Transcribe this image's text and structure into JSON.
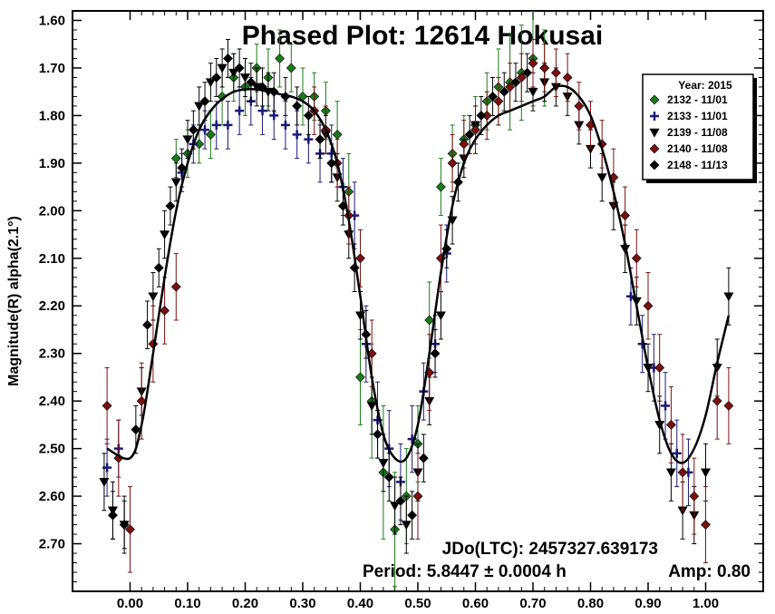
{
  "chart_data": {
    "type": "scatter",
    "title": "Phased Plot: 12614 Hokusai",
    "xlabel": "",
    "ylabel": "Magnitude(R) alpha(2.1°)",
    "xlim": [
      -0.1,
      1.1
    ],
    "ylim": [
      2.8,
      1.58
    ],
    "y_inverted": true,
    "x_ticks": [
      "0.00",
      "0.10",
      "0.20",
      "0.30",
      "0.40",
      "0.50",
      "0.60",
      "0.70",
      "0.80",
      "0.90",
      "1.00"
    ],
    "x_tick_values": [
      0.0,
      0.1,
      0.2,
      0.3,
      0.4,
      0.5,
      0.6,
      0.7,
      0.8,
      0.9,
      1.0
    ],
    "y_ticks": [
      "1.60",
      "1.70",
      "1.80",
      "1.90",
      "2.00",
      "2.10",
      "2.20",
      "2.30",
      "2.40",
      "2.50",
      "2.60",
      "2.70"
    ],
    "y_tick_values": [
      1.6,
      1.7,
      1.8,
      1.9,
      2.0,
      2.1,
      2.2,
      2.3,
      2.4,
      2.5,
      2.6,
      2.7
    ],
    "grid": false,
    "legend": {
      "title": "Year: 2015",
      "placement": "top-right",
      "entries": [
        "2132 - 11/01",
        "2133 - 11/01",
        "2139 - 11/08",
        "2140 - 11/08",
        "2148 - 11/13"
      ]
    },
    "annotations": [
      "JDo(LTC): 2457327.639173",
      "Period: 5.8447 ± 0.0004 h",
      "Amp: 0.80"
    ],
    "series": [
      {
        "name": "2132 - 11/01",
        "marker": "diamond",
        "color": "#1a7a1a",
        "x": [
          0.08,
          0.1,
          0.12,
          0.14,
          0.16,
          0.18,
          0.2,
          0.22,
          0.24,
          0.26,
          0.28,
          0.3,
          0.32,
          0.34,
          0.36,
          0.38,
          0.4,
          0.42,
          0.44,
          0.46,
          0.48,
          0.5,
          0.52,
          0.54,
          0.56,
          0.58,
          0.6,
          0.62,
          0.64,
          0.66,
          0.68,
          0.7,
          0.72
        ],
        "y": [
          1.89,
          1.88,
          1.86,
          1.84,
          1.76,
          1.72,
          1.74,
          1.7,
          1.72,
          1.68,
          1.7,
          1.76,
          1.76,
          1.79,
          1.84,
          1.96,
          2.35,
          2.4,
          2.55,
          2.67,
          2.6,
          2.49,
          2.23,
          1.95,
          1.88,
          1.85,
          1.82,
          1.77,
          1.74,
          1.73,
          1.71,
          1.68,
          1.7
        ],
        "err": [
          0.04,
          0.05,
          0.04,
          0.05,
          0.06,
          0.05,
          0.06,
          0.05,
          0.06,
          0.06,
          0.05,
          0.06,
          0.05,
          0.06,
          0.07,
          0.08,
          0.1,
          0.12,
          0.14,
          0.12,
          0.1,
          0.08,
          0.08,
          0.06,
          0.06,
          0.05,
          0.06,
          0.06,
          0.08,
          0.1,
          0.1,
          0.1,
          0.08
        ]
      },
      {
        "name": "2133 - 11/01",
        "marker": "plus",
        "color": "#1a1a7a",
        "x": [
          -0.04,
          -0.02,
          0.09,
          0.11,
          0.13,
          0.15,
          0.17,
          0.19,
          0.21,
          0.23,
          0.25,
          0.27,
          0.29,
          0.31,
          0.33,
          0.35,
          0.37,
          0.39,
          0.41,
          0.43,
          0.45,
          0.47,
          0.49,
          0.51,
          0.53,
          0.55,
          0.87,
          0.89,
          0.91,
          0.93,
          0.95,
          0.97
        ],
        "y": [
          2.54,
          2.5,
          1.92,
          1.86,
          1.83,
          1.82,
          1.82,
          1.79,
          1.77,
          1.79,
          1.8,
          1.82,
          1.84,
          1.85,
          1.88,
          1.88,
          1.95,
          2.01,
          2.28,
          2.44,
          2.5,
          2.57,
          2.48,
          2.38,
          2.28,
          2.09,
          2.18,
          2.28,
          2.33,
          2.41,
          2.51,
          2.55
        ],
        "err": [
          0.06,
          0.06,
          0.04,
          0.04,
          0.04,
          0.05,
          0.05,
          0.05,
          0.05,
          0.05,
          0.05,
          0.05,
          0.05,
          0.05,
          0.06,
          0.06,
          0.06,
          0.07,
          0.08,
          0.08,
          0.08,
          0.08,
          0.07,
          0.06,
          0.06,
          0.06,
          0.06,
          0.06,
          0.07,
          0.07,
          0.07,
          0.07
        ]
      },
      {
        "name": "2139 - 11/08",
        "marker": "triangle-down",
        "color": "#000000",
        "x": [
          -0.045,
          -0.03,
          -0.01,
          0.02,
          0.04,
          0.06,
          0.08,
          0.1,
          0.12,
          0.14,
          0.16,
          0.18,
          0.2,
          0.22,
          0.24,
          0.34,
          0.36,
          0.38,
          0.4,
          0.42,
          0.44,
          0.46,
          0.48,
          0.5,
          0.52,
          0.54,
          0.56,
          0.58,
          0.6,
          0.7,
          0.72,
          0.74,
          0.76,
          0.78,
          0.8,
          0.82,
          0.84,
          0.86,
          0.88,
          0.9,
          0.92,
          0.94,
          0.96,
          0.98,
          1.0,
          1.02,
          1.04
        ],
        "y": [
          2.57,
          2.63,
          2.66,
          2.38,
          2.18,
          2.05,
          1.94,
          1.85,
          1.78,
          1.73,
          1.7,
          1.71,
          1.72,
          1.74,
          1.75,
          1.84,
          1.93,
          2.05,
          2.22,
          2.41,
          2.53,
          2.62,
          2.66,
          2.55,
          2.4,
          2.22,
          2.02,
          1.89,
          1.82,
          1.75,
          1.73,
          1.74,
          1.76,
          1.82,
          1.87,
          1.93,
          1.99,
          2.08,
          2.19,
          2.33,
          2.45,
          2.55,
          2.63,
          2.64,
          2.55,
          2.33,
          2.18
        ],
        "err": [
          0.06,
          0.06,
          0.06,
          0.05,
          0.05,
          0.05,
          0.04,
          0.04,
          0.04,
          0.04,
          0.04,
          0.04,
          0.04,
          0.04,
          0.04,
          0.04,
          0.05,
          0.05,
          0.05,
          0.06,
          0.06,
          0.06,
          0.06,
          0.06,
          0.05,
          0.05,
          0.05,
          0.04,
          0.04,
          0.04,
          0.04,
          0.04,
          0.04,
          0.04,
          0.04,
          0.05,
          0.05,
          0.05,
          0.05,
          0.05,
          0.06,
          0.06,
          0.06,
          0.06,
          0.06,
          0.06,
          0.06
        ]
      },
      {
        "name": "2140 - 11/08",
        "marker": "diamond",
        "color": "#7a1010",
        "x": [
          -0.04,
          -0.02,
          0.0,
          0.02,
          0.04,
          0.06,
          0.08,
          0.32,
          0.34,
          0.36,
          0.38,
          0.4,
          0.42,
          0.5,
          0.52,
          0.54,
          0.56,
          0.58,
          0.6,
          0.62,
          0.64,
          0.66,
          0.68,
          0.7,
          0.72,
          0.74,
          0.76,
          0.78,
          0.8,
          0.82,
          0.84,
          0.86,
          0.88,
          0.9,
          0.92,
          0.94,
          0.96,
          0.98,
          1.0,
          1.02,
          1.04
        ],
        "y": [
          2.41,
          2.52,
          2.67,
          2.4,
          2.28,
          2.21,
          2.16,
          1.79,
          1.83,
          1.9,
          2.01,
          2.1,
          2.3,
          2.6,
          2.34,
          2.1,
          1.9,
          1.86,
          1.83,
          1.8,
          1.77,
          1.74,
          1.72,
          1.69,
          1.7,
          1.71,
          1.72,
          1.78,
          1.82,
          1.86,
          1.93,
          2.01,
          2.1,
          2.2,
          2.33,
          2.45,
          2.55,
          2.6,
          2.66,
          2.4,
          2.41
        ],
        "err": [
          0.08,
          0.08,
          0.09,
          0.08,
          0.08,
          0.07,
          0.07,
          0.05,
          0.05,
          0.05,
          0.06,
          0.06,
          0.07,
          0.09,
          0.08,
          0.07,
          0.06,
          0.05,
          0.05,
          0.05,
          0.05,
          0.05,
          0.05,
          0.05,
          0.05,
          0.05,
          0.05,
          0.05,
          0.05,
          0.05,
          0.06,
          0.06,
          0.06,
          0.07,
          0.07,
          0.08,
          0.08,
          0.08,
          0.08,
          0.08,
          0.08
        ]
      },
      {
        "name": "2148 - 11/13",
        "marker": "diamond",
        "color": "#000000",
        "x": [
          -0.03,
          -0.01,
          0.01,
          0.03,
          0.05,
          0.07,
          0.09,
          0.11,
          0.13,
          0.15,
          0.17,
          0.19,
          0.21,
          0.23,
          0.25,
          0.27,
          0.29,
          0.31,
          0.33,
          0.35,
          0.37,
          0.39,
          0.41,
          0.43,
          0.45,
          0.47,
          0.49,
          0.51,
          0.53,
          0.55,
          0.57,
          0.59,
          0.61,
          0.63,
          0.65,
          0.67,
          0.69
        ],
        "y": [
          2.64,
          2.66,
          2.46,
          2.24,
          2.12,
          1.99,
          1.91,
          1.83,
          1.77,
          1.72,
          1.68,
          1.7,
          1.73,
          1.74,
          1.75,
          1.76,
          1.78,
          1.8,
          1.85,
          1.9,
          1.99,
          2.12,
          2.26,
          2.47,
          2.56,
          2.61,
          2.64,
          2.52,
          2.3,
          2.08,
          1.94,
          1.84,
          1.8,
          1.76,
          1.75,
          1.73,
          1.71
        ],
        "err": [
          0.05,
          0.05,
          0.05,
          0.05,
          0.04,
          0.04,
          0.04,
          0.04,
          0.04,
          0.04,
          0.04,
          0.04,
          0.04,
          0.04,
          0.04,
          0.04,
          0.04,
          0.04,
          0.04,
          0.04,
          0.04,
          0.05,
          0.05,
          0.05,
          0.05,
          0.05,
          0.05,
          0.05,
          0.05,
          0.04,
          0.04,
          0.04,
          0.04,
          0.04,
          0.04,
          0.04,
          0.04
        ]
      }
    ],
    "fit_curve": {
      "x": [
        -0.04,
        0.0,
        0.02,
        0.04,
        0.06,
        0.08,
        0.1,
        0.12,
        0.14,
        0.16,
        0.18,
        0.2,
        0.22,
        0.24,
        0.26,
        0.28,
        0.3,
        0.32,
        0.34,
        0.36,
        0.38,
        0.4,
        0.42,
        0.44,
        0.46,
        0.48,
        0.5,
        0.52,
        0.54,
        0.56,
        0.58,
        0.6,
        0.62,
        0.64,
        0.66,
        0.68,
        0.7,
        0.72,
        0.74,
        0.76,
        0.78,
        0.8,
        0.82,
        0.84,
        0.86,
        0.88,
        0.9,
        0.92,
        0.94,
        0.96,
        0.98,
        1.0,
        1.02,
        1.04
      ],
      "y": [
        2.5,
        2.52,
        2.45,
        2.3,
        2.14,
        2.0,
        1.9,
        1.83,
        1.79,
        1.765,
        1.75,
        1.745,
        1.745,
        1.75,
        1.755,
        1.76,
        1.77,
        1.79,
        1.83,
        1.9,
        2.02,
        2.18,
        2.35,
        2.47,
        2.52,
        2.52,
        2.45,
        2.3,
        2.13,
        1.99,
        1.9,
        1.85,
        1.82,
        1.8,
        1.79,
        1.78,
        1.77,
        1.76,
        1.74,
        1.74,
        1.76,
        1.8,
        1.87,
        1.96,
        2.07,
        2.2,
        2.33,
        2.44,
        2.51,
        2.53,
        2.5,
        2.43,
        2.32,
        2.22
      ]
    }
  }
}
